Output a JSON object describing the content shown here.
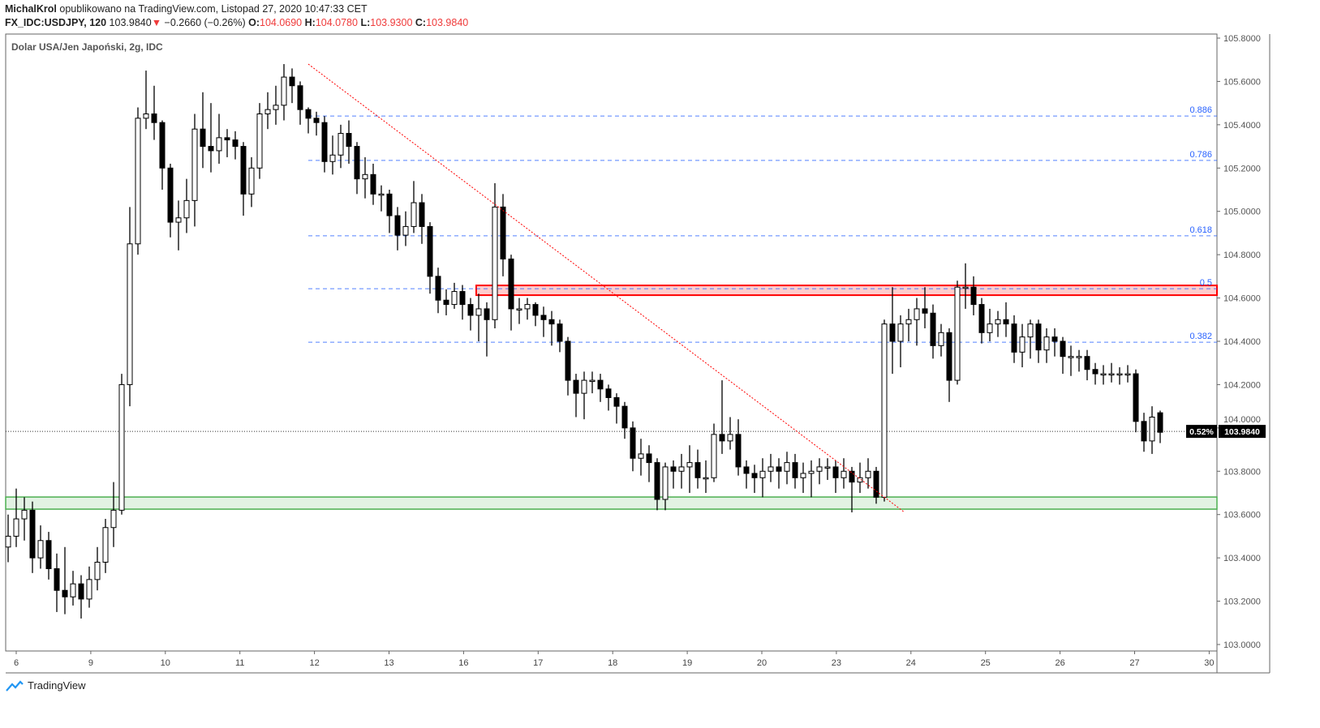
{
  "header": {
    "author": "MichalKrol",
    "published_text": "opublikowano na TradingView.com, Listopad 27, 2020 10:47:33 CET",
    "symbol": "FX_IDC:USDJPY, 120",
    "last": "103.9840",
    "change": "−0.2660 (−0.26%)",
    "change_direction": "down",
    "o_label": "O:",
    "o": "104.0690",
    "h_label": "H:",
    "h": "104.0780",
    "l_label": "L:",
    "l": "103.9300",
    "c_label": "C:",
    "c": "103.9840"
  },
  "chart_subtitle": "Dolar USA/Jen Japoński, 2g, IDC",
  "footer": {
    "brand": "TradingView",
    "icon": "tradingview-cloud-icon"
  },
  "price_tag": {
    "percent": "0.52%",
    "price": "103.9840"
  },
  "colors": {
    "up_body": "#ffffff",
    "down_body": "#000000",
    "fib": "#2962ff",
    "resistance": "#ff0000",
    "support": "#4caf50",
    "trendline": "#ff0000"
  },
  "chart_data": {
    "type": "candlestick",
    "title": "Dolar USA/Jen Japoński, 2g, IDC",
    "ylim": [
      103.0,
      105.8
    ],
    "y_ticks": [
      "105.8000",
      "105.6000",
      "105.4000",
      "105.2000",
      "105.0000",
      "104.8000",
      "104.6000",
      "104.4000",
      "104.2000",
      "104.0000",
      "103.8000",
      "103.6000",
      "103.4000",
      "103.2000",
      "103.0000"
    ],
    "x_ticks": [
      "6",
      "9",
      "10",
      "11",
      "12",
      "13",
      "16",
      "17",
      "18",
      "19",
      "20",
      "23",
      "24",
      "25",
      "26",
      "27",
      "30"
    ],
    "grid": false,
    "last_price": 103.984,
    "fib_levels": [
      {
        "label": "0.886",
        "price": 105.44
      },
      {
        "label": "0.786",
        "price": 105.235
      },
      {
        "label": "0.618",
        "price": 104.887
      },
      {
        "label": "0.5",
        "price": 104.643
      },
      {
        "label": "0.382",
        "price": 104.396
      }
    ],
    "resistance_zone": [
      104.613,
      104.658
    ],
    "support_zone": [
      103.625,
      103.681
    ],
    "trendline": {
      "from_price": 105.68,
      "to_price": 103.61
    },
    "candles_ohlc": [
      [
        103.45,
        103.6,
        103.38,
        103.5
      ],
      [
        103.5,
        103.72,
        103.45,
        103.58
      ],
      [
        103.58,
        103.68,
        103.48,
        103.62
      ],
      [
        103.62,
        103.66,
        103.33,
        103.4
      ],
      [
        103.4,
        103.55,
        103.35,
        103.48
      ],
      [
        103.48,
        103.52,
        103.3,
        103.35
      ],
      [
        103.35,
        103.42,
        103.15,
        103.25
      ],
      [
        103.25,
        103.45,
        103.14,
        103.22
      ],
      [
        103.22,
        103.34,
        103.18,
        103.28
      ],
      [
        103.28,
        103.32,
        103.12,
        103.21
      ],
      [
        103.21,
        103.36,
        103.17,
        103.3
      ],
      [
        103.3,
        103.45,
        103.25,
        103.38
      ],
      [
        103.38,
        103.58,
        103.33,
        103.54
      ],
      [
        103.54,
        103.75,
        103.45,
        103.62
      ],
      [
        103.62,
        104.25,
        103.6,
        104.2
      ],
      [
        104.2,
        105.02,
        104.1,
        104.85
      ],
      [
        104.85,
        105.48,
        104.8,
        105.43
      ],
      [
        105.43,
        105.65,
        105.38,
        105.45
      ],
      [
        105.45,
        105.58,
        105.33,
        105.41
      ],
      [
        105.41,
        105.42,
        105.1,
        105.2
      ],
      [
        105.2,
        105.22,
        104.88,
        104.95
      ],
      [
        104.95,
        105.05,
        104.82,
        104.97
      ],
      [
        104.97,
        105.15,
        104.9,
        105.05
      ],
      [
        105.05,
        105.45,
        104.93,
        105.38
      ],
      [
        105.38,
        105.55,
        105.2,
        105.3
      ],
      [
        105.3,
        105.5,
        105.18,
        105.28
      ],
      [
        105.28,
        105.45,
        105.22,
        105.34
      ],
      [
        105.34,
        105.38,
        105.25,
        105.33
      ],
      [
        105.33,
        105.37,
        105.24,
        105.3
      ],
      [
        105.3,
        105.32,
        104.98,
        105.08
      ],
      [
        105.08,
        105.25,
        105.02,
        105.2
      ],
      [
        105.2,
        105.5,
        105.15,
        105.45
      ],
      [
        105.45,
        105.55,
        105.38,
        105.47
      ],
      [
        105.47,
        105.58,
        105.4,
        105.49
      ],
      [
        105.49,
        105.68,
        105.42,
        105.62
      ],
      [
        105.62,
        105.66,
        105.5,
        105.58
      ],
      [
        105.58,
        105.6,
        105.4,
        105.47
      ],
      [
        105.47,
        105.48,
        105.36,
        105.43
      ],
      [
        105.43,
        105.46,
        105.35,
        105.41
      ],
      [
        105.41,
        105.44,
        105.18,
        105.23
      ],
      [
        105.23,
        105.35,
        105.17,
        105.26
      ],
      [
        105.26,
        105.4,
        105.2,
        105.36
      ],
      [
        105.36,
        105.42,
        105.22,
        105.3
      ],
      [
        105.3,
        105.32,
        105.08,
        105.15
      ],
      [
        105.15,
        105.25,
        105.06,
        105.17
      ],
      [
        105.17,
        105.22,
        105.03,
        105.08
      ],
      [
        105.08,
        105.12,
        105.0,
        105.08
      ],
      [
        105.08,
        105.1,
        104.9,
        104.98
      ],
      [
        104.98,
        105.02,
        104.82,
        104.89
      ],
      [
        104.89,
        105.0,
        104.84,
        104.93
      ],
      [
        104.93,
        105.14,
        104.9,
        105.04
      ],
      [
        105.04,
        105.08,
        104.85,
        104.93
      ],
      [
        104.93,
        104.95,
        104.62,
        104.7
      ],
      [
        104.7,
        104.74,
        104.53,
        104.59
      ],
      [
        104.59,
        104.64,
        104.52,
        104.57
      ],
      [
        104.57,
        104.67,
        104.55,
        104.63
      ],
      [
        104.63,
        104.66,
        104.5,
        104.57
      ],
      [
        104.57,
        104.6,
        104.45,
        104.52
      ],
      [
        104.52,
        104.62,
        104.4,
        104.55
      ],
      [
        104.55,
        104.58,
        104.33,
        104.5
      ],
      [
        104.5,
        105.13,
        104.46,
        105.02
      ],
      [
        105.02,
        105.08,
        104.7,
        104.78
      ],
      [
        104.78,
        104.8,
        104.45,
        104.55
      ],
      [
        104.55,
        104.6,
        104.48,
        104.55
      ],
      [
        104.55,
        104.6,
        104.5,
        104.57
      ],
      [
        104.57,
        104.58,
        104.47,
        104.52
      ],
      [
        104.52,
        104.56,
        104.42,
        104.5
      ],
      [
        104.5,
        104.54,
        104.38,
        104.48
      ],
      [
        104.48,
        104.5,
        104.35,
        104.4
      ],
      [
        104.4,
        104.42,
        104.15,
        104.22
      ],
      [
        104.22,
        104.25,
        104.05,
        104.16
      ],
      [
        104.16,
        104.26,
        104.04,
        104.22
      ],
      [
        104.22,
        104.26,
        104.16,
        104.22
      ],
      [
        104.22,
        104.25,
        104.12,
        104.18
      ],
      [
        104.18,
        104.2,
        104.08,
        104.14
      ],
      [
        104.14,
        104.16,
        104.02,
        104.1
      ],
      [
        104.1,
        104.12,
        103.95,
        104.0
      ],
      [
        104.0,
        104.03,
        103.8,
        103.86
      ],
      [
        103.86,
        103.95,
        103.78,
        103.88
      ],
      [
        103.88,
        103.92,
        103.75,
        103.84
      ],
      [
        103.84,
        103.86,
        103.62,
        103.67
      ],
      [
        103.67,
        103.84,
        103.62,
        103.82
      ],
      [
        103.82,
        103.85,
        103.72,
        103.8
      ],
      [
        103.8,
        103.88,
        103.72,
        103.82
      ],
      [
        103.82,
        103.92,
        103.7,
        103.84
      ],
      [
        103.84,
        103.9,
        103.72,
        103.77
      ],
      [
        103.77,
        103.85,
        103.7,
        103.77
      ],
      [
        103.77,
        104.02,
        103.75,
        103.97
      ],
      [
        103.97,
        104.22,
        103.88,
        103.94
      ],
      [
        103.94,
        104.05,
        103.9,
        103.97
      ],
      [
        103.97,
        104.04,
        103.78,
        103.82
      ],
      [
        103.82,
        103.85,
        103.72,
        103.79
      ],
      [
        103.79,
        103.83,
        103.7,
        103.77
      ],
      [
        103.77,
        103.86,
        103.68,
        103.8
      ],
      [
        103.8,
        103.88,
        103.75,
        103.82
      ],
      [
        103.82,
        103.86,
        103.72,
        103.8
      ],
      [
        103.8,
        103.89,
        103.74,
        103.84
      ],
      [
        103.84,
        103.88,
        103.72,
        103.77
      ],
      [
        103.77,
        103.84,
        103.7,
        103.79
      ],
      [
        103.79,
        103.85,
        103.68,
        103.8
      ],
      [
        103.8,
        103.86,
        103.74,
        103.82
      ],
      [
        103.82,
        103.86,
        103.76,
        103.82
      ],
      [
        103.82,
        103.85,
        103.7,
        103.77
      ],
      [
        103.77,
        103.86,
        103.72,
        103.8
      ],
      [
        103.8,
        103.82,
        103.61,
        103.75
      ],
      [
        103.75,
        103.84,
        103.7,
        103.77
      ],
      [
        103.77,
        103.86,
        103.72,
        103.8
      ],
      [
        103.8,
        103.82,
        103.65,
        103.68
      ],
      [
        103.68,
        104.5,
        103.66,
        104.48
      ],
      [
        104.48,
        104.65,
        104.25,
        104.4
      ],
      [
        104.4,
        104.52,
        104.28,
        104.48
      ],
      [
        104.48,
        104.55,
        104.4,
        104.5
      ],
      [
        104.5,
        104.6,
        104.38,
        104.55
      ],
      [
        104.55,
        104.65,
        104.46,
        104.53
      ],
      [
        104.53,
        104.57,
        104.32,
        104.38
      ],
      [
        104.38,
        104.48,
        104.33,
        104.44
      ],
      [
        104.44,
        104.46,
        104.12,
        104.22
      ],
      [
        104.22,
        104.68,
        104.2,
        104.65
      ],
      [
        104.65,
        104.76,
        104.55,
        104.65
      ],
      [
        104.65,
        104.7,
        104.52,
        104.57
      ],
      [
        104.57,
        104.6,
        104.39,
        104.44
      ],
      [
        104.44,
        104.55,
        104.4,
        104.48
      ],
      [
        104.48,
        104.54,
        104.42,
        104.5
      ],
      [
        104.5,
        104.58,
        104.42,
        104.48
      ],
      [
        104.48,
        104.52,
        104.3,
        104.35
      ],
      [
        104.35,
        104.48,
        104.28,
        104.42
      ],
      [
        104.42,
        104.5,
        104.32,
        104.48
      ],
      [
        104.48,
        104.5,
        104.3,
        104.36
      ],
      [
        104.36,
        104.46,
        104.3,
        104.42
      ],
      [
        104.42,
        104.46,
        104.33,
        104.4
      ],
      [
        104.4,
        104.42,
        104.25,
        104.33
      ],
      [
        104.33,
        104.38,
        104.24,
        104.33
      ],
      [
        104.33,
        104.36,
        104.26,
        104.33
      ],
      [
        104.33,
        104.36,
        104.22,
        104.27
      ],
      [
        104.27,
        104.3,
        104.2,
        104.25
      ],
      [
        104.25,
        104.29,
        104.2,
        104.25
      ],
      [
        104.25,
        104.3,
        104.21,
        104.25
      ],
      [
        104.25,
        104.28,
        104.2,
        104.25
      ],
      [
        104.25,
        104.29,
        104.21,
        104.25
      ],
      [
        104.25,
        104.27,
        103.98,
        104.03
      ],
      [
        104.03,
        104.07,
        103.89,
        103.94
      ],
      [
        103.94,
        104.1,
        103.88,
        104.05
      ],
      [
        104.07,
        104.08,
        103.93,
        103.98
      ]
    ]
  }
}
